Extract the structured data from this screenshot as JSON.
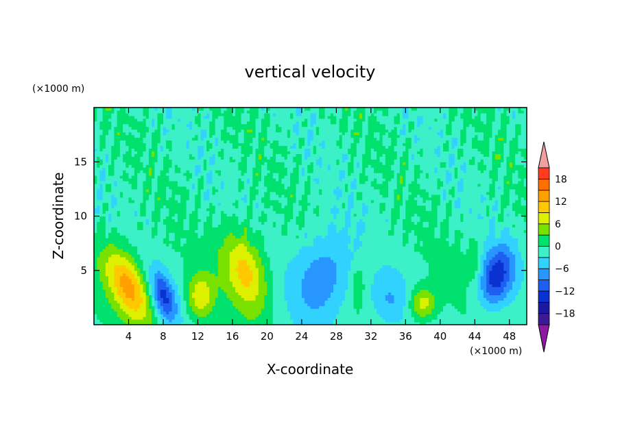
{
  "chart_data": {
    "type": "heatmap",
    "title": "vertical velocity",
    "xlabel": "X-coordinate",
    "ylabel": "Z-coordinate",
    "x_unit": "(×1000 m)",
    "y_unit": "(×1000 m)",
    "xlim": [
      0,
      50
    ],
    "ylim": [
      0,
      20
    ],
    "x_ticks": [
      4,
      8,
      12,
      16,
      20,
      24,
      28,
      32,
      36,
      40,
      44,
      48
    ],
    "y_ticks": [
      5,
      10,
      15
    ],
    "x_tick_labels": [
      "4",
      "8",
      "12",
      "16",
      "20",
      "24",
      "28",
      "32",
      "36",
      "40",
      "44",
      "48"
    ],
    "y_tick_labels": [
      "5",
      "10",
      "15"
    ],
    "colorbar": {
      "levels": [
        -21,
        -18,
        -15,
        -12,
        -9,
        -6,
        -3,
        0,
        3,
        6,
        9,
        12,
        15,
        18,
        21
      ],
      "colors": [
        "#3c1a96",
        "#1a1aa0",
        "#0a32d2",
        "#1e5ff0",
        "#2896ff",
        "#32d2ff",
        "#3cf0c8",
        "#00e16e",
        "#78e100",
        "#dcf000",
        "#ffc800",
        "#ffa000",
        "#ff6e00",
        "#ff3c1e"
      ],
      "under_color": "#8c1aa0",
      "over_color": "#f0a0a0",
      "tick_values": [
        -18,
        -12,
        -6,
        0,
        6,
        12,
        18
      ],
      "tick_labels": [
        "−18",
        "−12",
        "−6",
        "0",
        "6",
        "12",
        "18"
      ]
    },
    "features": [
      {
        "x": 4.0,
        "z": 3.6,
        "w": 14,
        "sx": 1.6,
        "sz": 2.4,
        "tilt": -0.45
      },
      {
        "x": 8.0,
        "z": 2.6,
        "w": -12,
        "sx": 1.0,
        "sz": 1.7,
        "tilt": -0.3
      },
      {
        "x": 12.3,
        "z": 2.6,
        "w": 9,
        "sx": 1.1,
        "sz": 1.5,
        "tilt": 0
      },
      {
        "x": 17.5,
        "z": 5.0,
        "w": 11,
        "sx": 1.7,
        "sz": 2.6,
        "tilt": -0.25
      },
      {
        "x": 26.5,
        "z": 4.5,
        "w": -8,
        "sx": 2.5,
        "sz": 3.0,
        "tilt": 0.1
      },
      {
        "x": 30.5,
        "z": 3.8,
        "w": 4,
        "sx": 0.6,
        "sz": 1.4,
        "tilt": 0
      },
      {
        "x": 34.0,
        "z": 2.2,
        "w": -5,
        "sx": 1.6,
        "sz": 1.8,
        "tilt": 0
      },
      {
        "x": 38.0,
        "z": 2.0,
        "w": 9,
        "sx": 1.1,
        "sz": 1.1,
        "tilt": 0
      },
      {
        "x": 44.0,
        "z": 6.0,
        "w": 4,
        "sx": 0.5,
        "sz": 1.5,
        "tilt": 0
      },
      {
        "x": 46.5,
        "z": 4.5,
        "w": -13,
        "sx": 1.4,
        "sz": 2.0,
        "tilt": 0.2
      }
    ]
  }
}
